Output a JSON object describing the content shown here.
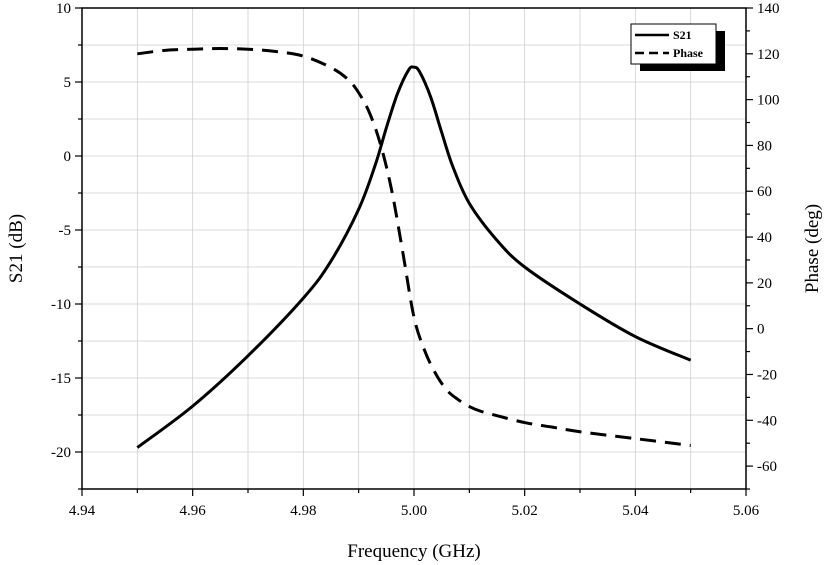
{
  "chart_data": {
    "type": "line",
    "xlabel": "Frequency (GHz)",
    "ylabel": "S21 (dB)",
    "y2label": "Phase (deg)",
    "xlim": [
      4.94,
      5.06
    ],
    "ylim": [
      -22.5,
      10
    ],
    "y2lim": [
      -70,
      140
    ],
    "x_ticks": [
      "4.94",
      "4.96",
      "4.98",
      "5.00",
      "5.02",
      "5.04",
      "5.06"
    ],
    "y_ticks": [
      "10",
      "5",
      "0",
      "-5",
      "-10",
      "-15",
      "-20"
    ],
    "y2_ticks": [
      "140",
      "120",
      "100",
      "80",
      "60",
      "40",
      "20",
      "0",
      "-20",
      "-40",
      "-60"
    ],
    "grid": true,
    "legend_position": "top-right",
    "series": [
      {
        "name": "S21",
        "axis": "left",
        "style": "solid",
        "color": "#000000",
        "x": [
          4.95,
          4.96,
          4.97,
          4.98,
          4.985,
          4.99,
          4.993,
          4.995,
          4.997,
          4.999,
          5.0,
          5.001,
          5.003,
          5.005,
          5.007,
          5.01,
          5.015,
          5.02,
          5.03,
          5.04,
          5.05
        ],
        "y": [
          -19.7,
          -16.9,
          -13.5,
          -9.6,
          -7.1,
          -3.6,
          -0.6,
          1.9,
          4.2,
          5.8,
          6.0,
          5.7,
          4.0,
          1.6,
          -0.7,
          -3.2,
          -5.7,
          -7.5,
          -10.0,
          -12.2,
          -13.8
        ]
      },
      {
        "name": "Phase",
        "axis": "right",
        "style": "dashed",
        "color": "#000000",
        "x": [
          4.95,
          4.955,
          4.96,
          4.965,
          4.97,
          4.975,
          4.98,
          4.985,
          4.988,
          4.99,
          4.992,
          4.994,
          4.996,
          4.998,
          5.0,
          5.002,
          5.004,
          5.006,
          5.008,
          5.01,
          5.012,
          5.015,
          5.02,
          5.025,
          5.03,
          5.04,
          5.05
        ],
        "y": [
          120,
          121.5,
          122,
          122.3,
          122,
          121,
          119,
          114,
          109,
          103,
          94,
          80,
          60,
          33,
          5,
          -10,
          -20,
          -27,
          -31,
          -34,
          -36,
          -38,
          -41,
          -43,
          -45,
          -48,
          -51
        ]
      }
    ]
  }
}
